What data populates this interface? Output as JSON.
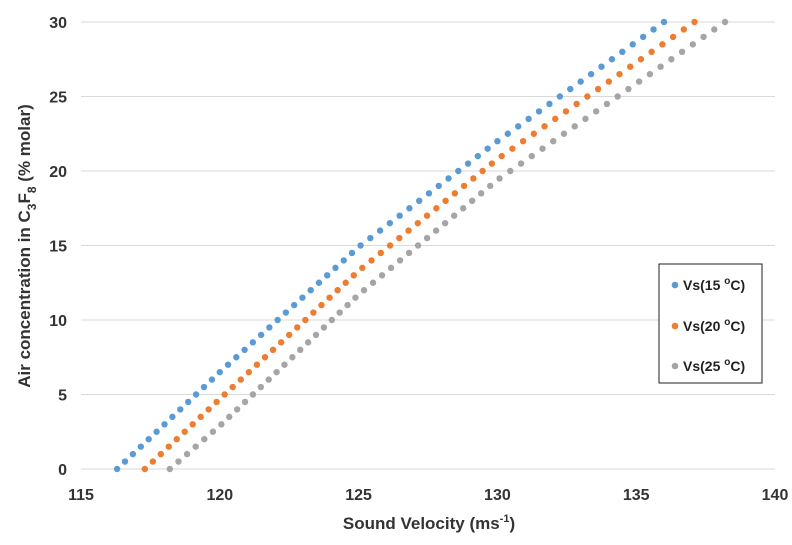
{
  "chart_data": {
    "type": "scatter",
    "title": "",
    "xlabel": {
      "base": "Sound Velocity (ms",
      "sup": "-1",
      "tail": ")"
    },
    "ylabel": {
      "p1": "Air concentration in C",
      "sub1": "3",
      "p2": "F",
      "sub2": "8",
      "p3": " (% molar)"
    },
    "xlim": [
      115,
      140
    ],
    "ylim": [
      0,
      30
    ],
    "xticks": [
      "115",
      "120",
      "125",
      "130",
      "135",
      "140"
    ],
    "yticks": [
      "0",
      "5",
      "10",
      "15",
      "20",
      "25",
      "30"
    ],
    "grid": "horizontal",
    "legend_position": "right",
    "series": [
      {
        "name_base": "Vs(15 ",
        "name_sup": "o",
        "name_tail": "C)",
        "color": "#5b9bd5",
        "x_start": 116.3,
        "x_end": 136.0,
        "y_values": [
          0,
          0.5,
          1,
          1.5,
          2,
          2.5,
          3,
          3.5,
          4,
          4.5,
          5,
          5.5,
          6,
          6.5,
          7,
          7.5,
          8,
          8.5,
          9,
          9.5,
          10,
          10.5,
          11,
          11.5,
          12,
          12.5,
          13,
          13.5,
          14,
          14.5,
          15,
          15.5,
          16,
          16.5,
          17,
          17.5,
          18,
          18.5,
          19,
          19.5,
          20,
          20.5,
          21,
          21.5,
          22,
          22.5,
          23,
          23.5,
          24,
          24.5,
          25,
          25.5,
          26,
          26.5,
          27,
          27.5,
          28,
          28.5,
          29,
          29.5,
          30
        ],
        "curve_points": [
          [
            116.3,
            0
          ],
          [
            120.0,
            6.5
          ],
          [
            125.0,
            14.9
          ],
          [
            130.0,
            22.0
          ],
          [
            136.0,
            30
          ]
        ]
      },
      {
        "name_base": "Vs(20 ",
        "name_sup": "o",
        "name_tail": "C)",
        "color": "#ed7d31",
        "x_start": 117.3,
        "x_end": 137.1,
        "y_values": [
          0,
          0.5,
          1,
          1.5,
          2,
          2.5,
          3,
          3.5,
          4,
          4.5,
          5,
          5.5,
          6,
          6.5,
          7,
          7.5,
          8,
          8.5,
          9,
          9.5,
          10,
          10.5,
          11,
          11.5,
          12,
          12.5,
          13,
          13.5,
          14,
          14.5,
          15,
          15.5,
          16,
          16.5,
          17,
          17.5,
          18,
          18.5,
          19,
          19.5,
          20,
          20.5,
          21,
          21.5,
          22,
          22.5,
          23,
          23.5,
          24,
          24.5,
          25,
          25.5,
          26,
          26.5,
          27,
          27.5,
          28,
          28.5,
          29,
          29.5,
          30
        ],
        "curve_points": [
          [
            117.3,
            0
          ],
          [
            120.0,
            4.7
          ],
          [
            125.0,
            13.3
          ],
          [
            130.0,
            20.8
          ],
          [
            137.1,
            30
          ]
        ]
      },
      {
        "name_base": "Vs(25 ",
        "name_sup": "o",
        "name_tail": "C)",
        "color": "#a5a5a5",
        "x_start": 118.2,
        "x_end": 138.2,
        "y_values": [
          0,
          0.5,
          1,
          1.5,
          2,
          2.5,
          3,
          3.5,
          4,
          4.5,
          5,
          5.5,
          6,
          6.5,
          7,
          7.5,
          8,
          8.5,
          9,
          9.5,
          10,
          10.5,
          11,
          11.5,
          12,
          12.5,
          13,
          13.5,
          14,
          14.5,
          15,
          15.5,
          16,
          16.5,
          17,
          17.5,
          18,
          18.5,
          19,
          19.5,
          20,
          20.5,
          21,
          21.5,
          22,
          22.5,
          23,
          23.5,
          24,
          24.5,
          25,
          25.5,
          26,
          26.5,
          27,
          27.5,
          28,
          28.5,
          29,
          29.5,
          30
        ],
        "curve_points": [
          [
            118.2,
            0
          ],
          [
            120.0,
            2.9
          ],
          [
            125.0,
            11.7
          ],
          [
            130.0,
            19.4
          ],
          [
            138.2,
            30
          ]
        ]
      }
    ]
  }
}
